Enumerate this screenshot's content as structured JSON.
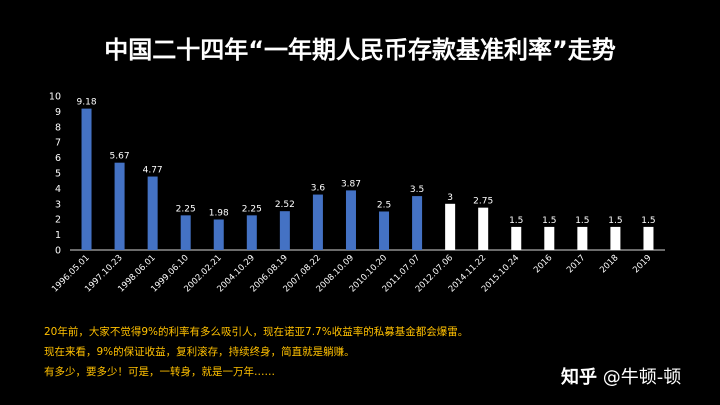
{
  "title": "中国二十四年“一年期人民币存款基准利率”走势",
  "chart_data": {
    "type": "bar",
    "categories": [
      "1996.05.01",
      "1997.10.23",
      "1998.06.01",
      "1999.06.10",
      "2002.02.21",
      "2004.10.29",
      "2006.08.19",
      "2007.08.22",
      "2008.10.09",
      "2010.10.20",
      "2011.07.07",
      "2012.07.06",
      "2014.11.22",
      "2015.10.24",
      "2016",
      "2017",
      "2018",
      "2019"
    ],
    "values": [
      9.18,
      5.67,
      4.77,
      2.25,
      1.98,
      2.25,
      2.52,
      3.6,
      3.87,
      2.5,
      3.5,
      3,
      2.75,
      1.5,
      1.5,
      1.5,
      1.5,
      1.5
    ],
    "value_labels": [
      "9.18",
      "5.67",
      "4.77",
      "2.25",
      "1.98",
      "2.25",
      "2.52",
      "3.6",
      "3.87",
      "2.5",
      "3.5",
      "3",
      "2.75",
      "1.5",
      "1.5",
      "1.5",
      "1.5",
      "1.5"
    ],
    "bar_colors": [
      "#4472c4",
      "#4472c4",
      "#4472c4",
      "#4472c4",
      "#4472c4",
      "#4472c4",
      "#4472c4",
      "#4472c4",
      "#4472c4",
      "#4472c4",
      "#4472c4",
      "#ffffff",
      "#ffffff",
      "#ffffff",
      "#ffffff",
      "#ffffff",
      "#ffffff",
      "#ffffff"
    ],
    "ylim": [
      0,
      10
    ],
    "yticks": [
      "0",
      "1",
      "2",
      "3",
      "4",
      "5",
      "6",
      "7",
      "8",
      "9",
      "10"
    ],
    "grid": false
  },
  "notes": [
    "20年前，大家不觉得9%的利率有多么吸引人，现在诺亚7.7%收益率的私募基金都会爆雷。",
    "现在来看，9%的保证收益，复利滚存，持续终身，简直就是躺赚。",
    "有多少，要多少！可是，一转身，就是一万年……"
  ],
  "watermark": {
    "zh": "知乎",
    "handle": "@牛顿-顿"
  },
  "colors": {
    "background": "#000000",
    "notes_text": "#ffc000",
    "axis": "#d9d9d9"
  }
}
